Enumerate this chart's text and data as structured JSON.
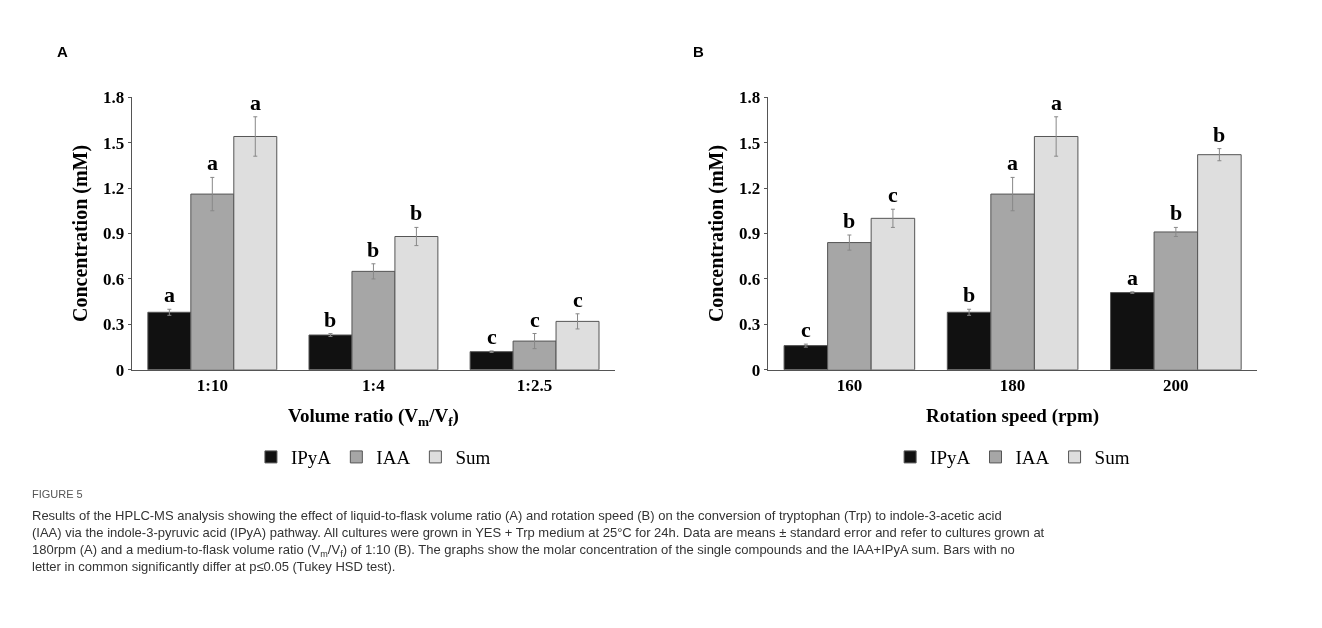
{
  "chart_data": [
    {
      "type": "bar",
      "title": "A",
      "xlabel": "Volume ratio (V$_{m}$/V$_{f}$)",
      "ylabel": "Concentration (mM)",
      "categories": [
        "1:10",
        "1:4",
        "1:2.5"
      ],
      "ylim": [
        0,
        1.8
      ],
      "yticks": [
        0,
        0.3,
        0.6,
        0.9,
        1.2,
        1.5,
        1.8
      ],
      "legend": "bottom",
      "series": [
        {
          "name": "IPyA",
          "color": "#111111",
          "values": [
            0.38,
            0.23,
            0.12
          ],
          "errors": [
            0.02,
            0.01,
            0.005
          ],
          "value_labels": [
            "a",
            "b",
            "c"
          ]
        },
        {
          "name": "IAA",
          "color": "#a6a6a6",
          "values": [
            1.16,
            0.65,
            0.19
          ],
          "errors": [
            0.11,
            0.05,
            0.05
          ],
          "value_labels": [
            "a",
            "b",
            "c"
          ]
        },
        {
          "name": "Sum",
          "color": "#dedede",
          "values": [
            1.54,
            0.88,
            0.32
          ],
          "errors": [
            0.13,
            0.06,
            0.05
          ],
          "value_labels": [
            "a",
            "b",
            "c"
          ]
        }
      ],
      "annotations": [
        "FIGURE 5",
        "Results of the HPLC-MS analysis showing the effect of liquid-to-flask volume ratio (A) and rotation speed (B) on the conversion of tryptophan (Trp) to indole-3-acetic acid (IAA) via the indole-3-pyruvic acid (IPyA) pathway. All cultures were grown in YES + Trp medium at 25°C for 24h. Data are means ± standard error and refer to cultures grown at 180rpm (A) and a medium-to-flask volume ratio (V$_{m}$/V$_{f}$) of 1:10 (B). The graphs show the molar concentration of the single compounds and the IAA+IPyA sum. Bars with no letter in common significantly differ at p≤0.05 (Tukey HSD test)."
      ]
    },
    {
      "type": "bar",
      "title": "B",
      "xlabel": "Rotation speed (rpm)",
      "ylabel": "Concentration (mM)",
      "categories": [
        "160",
        "180",
        "200"
      ],
      "ylim": [
        0,
        1.8
      ],
      "yticks": [
        0,
        0.3,
        0.6,
        0.9,
        1.2,
        1.5,
        1.8
      ],
      "legend": "bottom",
      "series": [
        {
          "name": "IPyA",
          "color": "#111111",
          "values": [
            0.16,
            0.38,
            0.51
          ],
          "errors": [
            0.01,
            0.02,
            0.005
          ],
          "value_labels": [
            "c",
            "b",
            "a"
          ]
        },
        {
          "name": "IAA",
          "color": "#a6a6a6",
          "values": [
            0.84,
            1.16,
            0.91
          ],
          "errors": [
            0.05,
            0.11,
            0.03
          ],
          "value_labels": [
            "b",
            "a",
            "b"
          ]
        },
        {
          "name": "Sum",
          "color": "#dedede",
          "values": [
            1.0,
            1.54,
            1.42
          ],
          "errors": [
            0.06,
            0.13,
            0.04
          ],
          "value_labels": [
            "c",
            "a",
            "b"
          ]
        }
      ]
    }
  ]
}
